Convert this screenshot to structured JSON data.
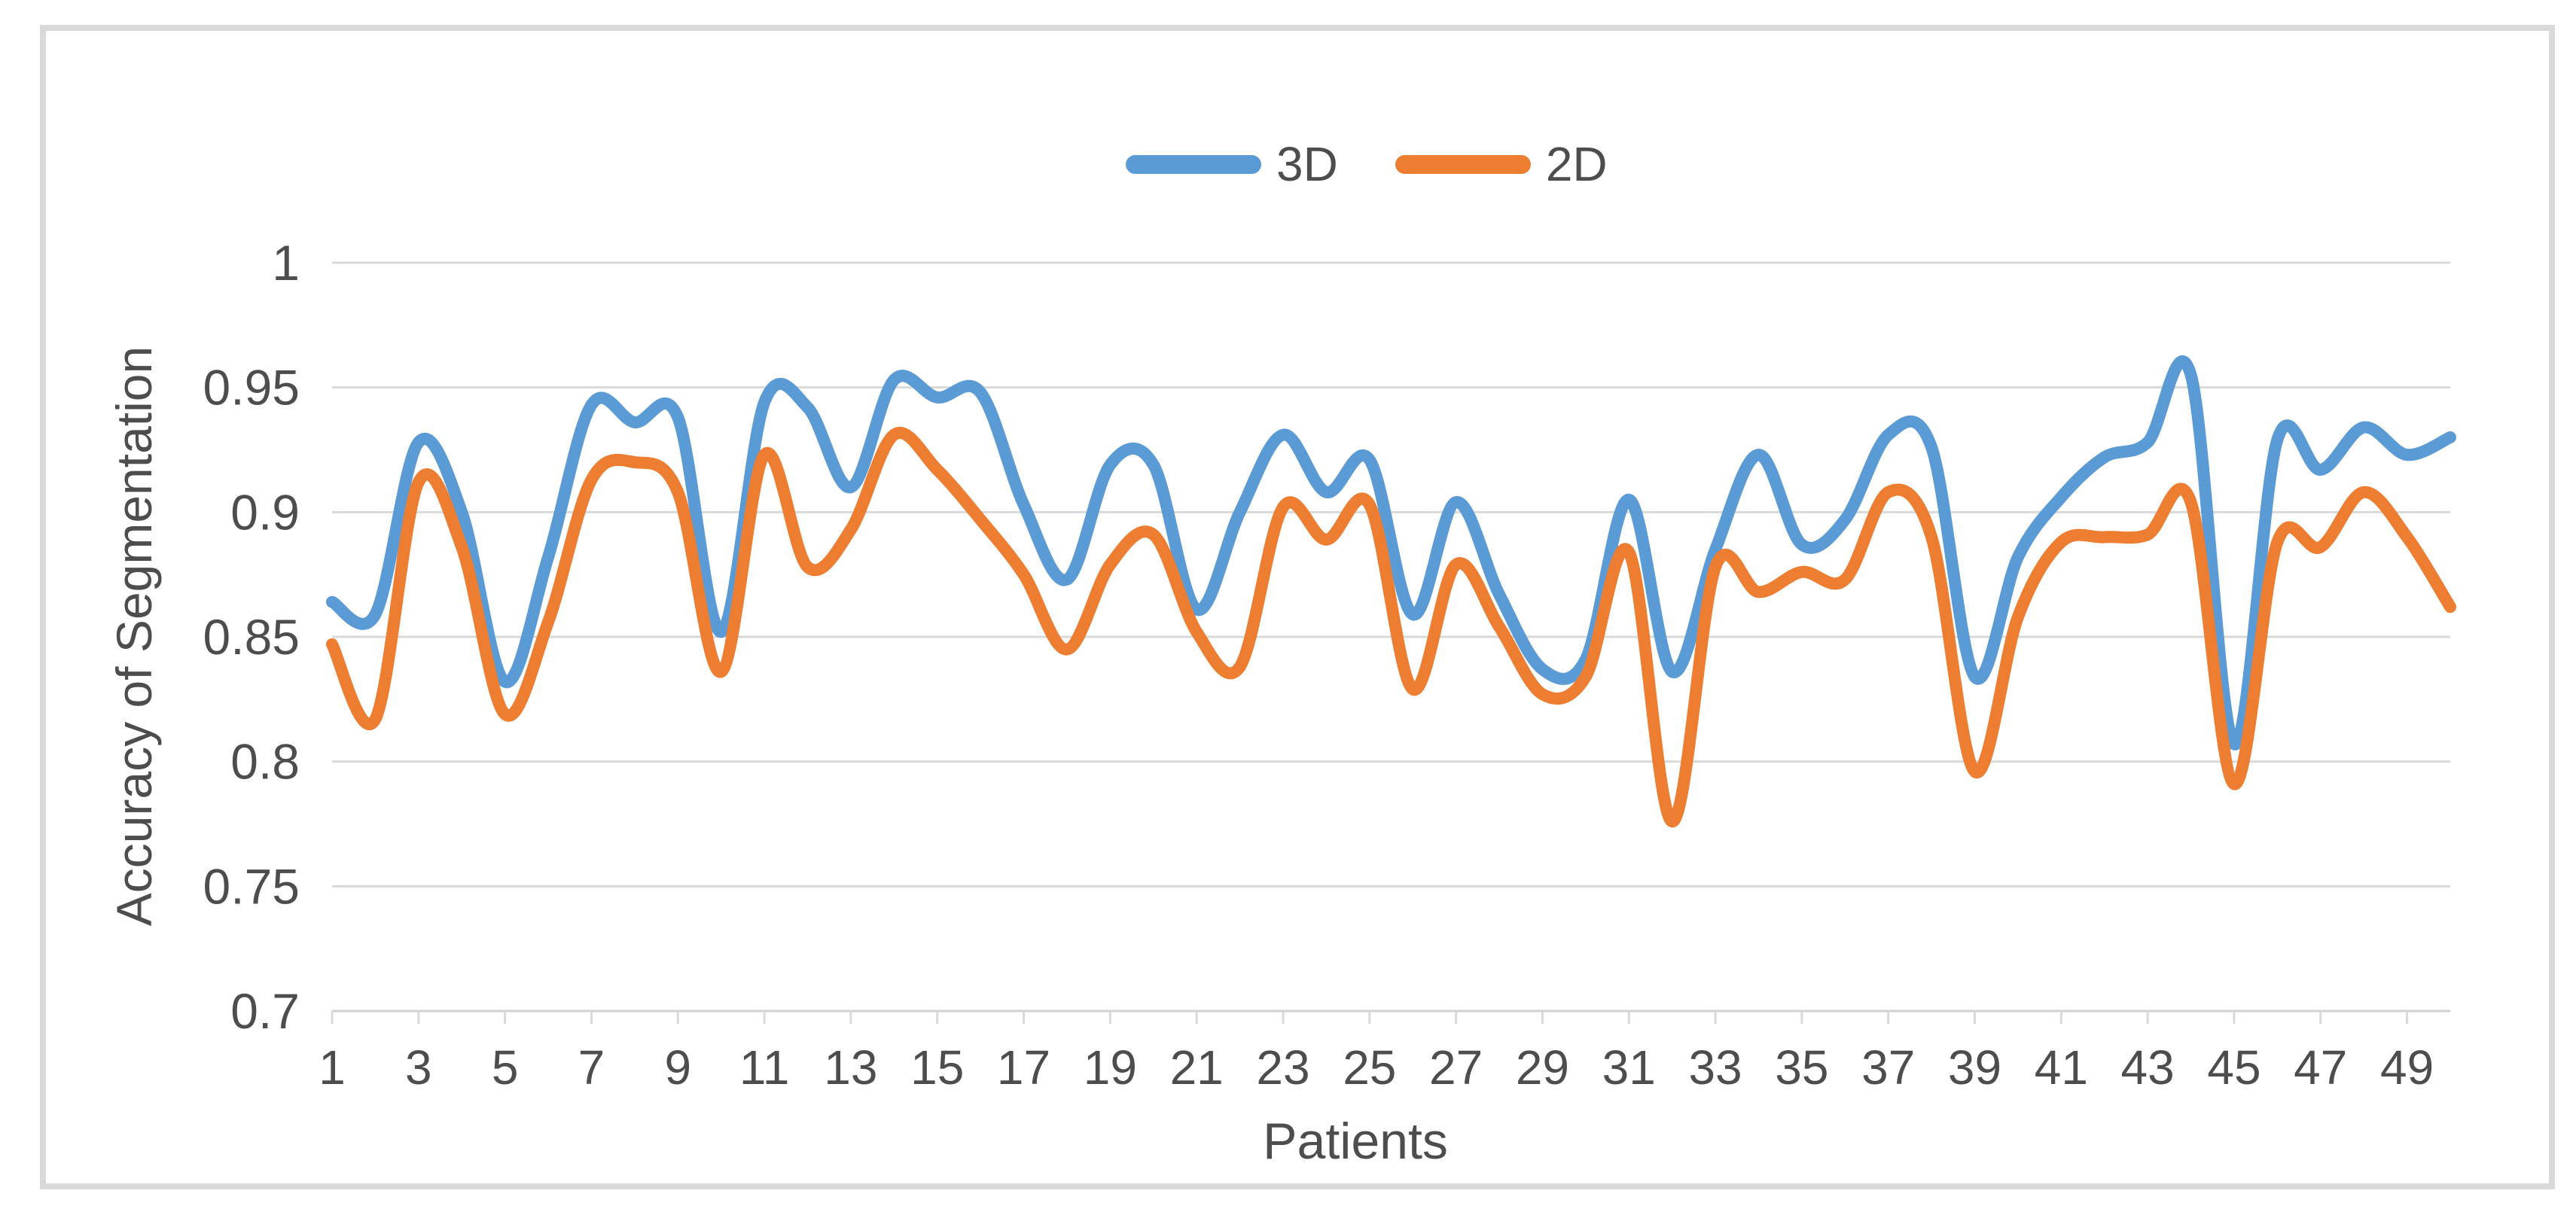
{
  "frame": {
    "border_color": "#d9d9d9",
    "background": "#ffffff"
  },
  "axis_style": {
    "gridline_color": "#d9d9d9",
    "axis_line_color": "#d1d1d1",
    "tick_color": "#d9d9d9",
    "label_color": "#4d4d4d"
  },
  "legend": {
    "items": [
      {
        "label": "3D",
        "color": "#5b9bd5"
      },
      {
        "label": "2D",
        "color": "#ed7d31"
      }
    ]
  },
  "chart_data": {
    "type": "line",
    "title": "",
    "xlabel": "Patients",
    "ylabel": "Accuracy of Segmentation",
    "smooth": true,
    "grid": true,
    "legend_position": "top-center",
    "ylim": [
      0.7,
      1.0
    ],
    "y_ticks": [
      1,
      0.95,
      0.9,
      0.85,
      0.8,
      0.75,
      0.7
    ],
    "x": [
      1,
      2,
      3,
      4,
      5,
      6,
      7,
      8,
      9,
      10,
      11,
      12,
      13,
      14,
      15,
      16,
      17,
      18,
      19,
      20,
      21,
      22,
      23,
      24,
      25,
      26,
      27,
      28,
      29,
      30,
      31,
      32,
      33,
      34,
      35,
      36,
      37,
      38,
      39,
      40,
      41,
      42,
      43,
      44,
      45,
      46,
      47,
      48,
      49,
      50
    ],
    "x_tick_labels": [
      1,
      3,
      5,
      7,
      9,
      11,
      13,
      15,
      17,
      19,
      21,
      23,
      25,
      27,
      29,
      31,
      33,
      35,
      37,
      39,
      41,
      43,
      45,
      47,
      49
    ],
    "series": [
      {
        "name": "3D",
        "color": "#5b9bd5",
        "values": [
          0.864,
          0.859,
          0.928,
          0.9,
          0.832,
          0.882,
          0.943,
          0.936,
          0.938,
          0.852,
          0.944,
          0.942,
          0.91,
          0.953,
          0.946,
          0.948,
          0.903,
          0.873,
          0.919,
          0.919,
          0.861,
          0.9,
          0.931,
          0.908,
          0.921,
          0.859,
          0.904,
          0.867,
          0.837,
          0.841,
          0.905,
          0.836,
          0.885,
          0.923,
          0.887,
          0.897,
          0.931,
          0.926,
          0.834,
          0.882,
          0.906,
          0.922,
          0.928,
          0.955,
          0.807,
          0.929,
          0.917,
          0.934,
          0.923,
          0.93
        ]
      },
      {
        "name": "2D",
        "color": "#ed7d31",
        "values": [
          0.847,
          0.817,
          0.912,
          0.886,
          0.819,
          0.856,
          0.913,
          0.92,
          0.908,
          0.836,
          0.923,
          0.878,
          0.893,
          0.931,
          0.917,
          0.897,
          0.875,
          0.845,
          0.879,
          0.891,
          0.852,
          0.838,
          0.902,
          0.889,
          0.903,
          0.829,
          0.879,
          0.854,
          0.827,
          0.834,
          0.884,
          0.776,
          0.878,
          0.868,
          0.876,
          0.873,
          0.908,
          0.89,
          0.796,
          0.858,
          0.888,
          0.89,
          0.891,
          0.904,
          0.791,
          0.888,
          0.886,
          0.908,
          0.89,
          0.862
        ]
      }
    ]
  }
}
